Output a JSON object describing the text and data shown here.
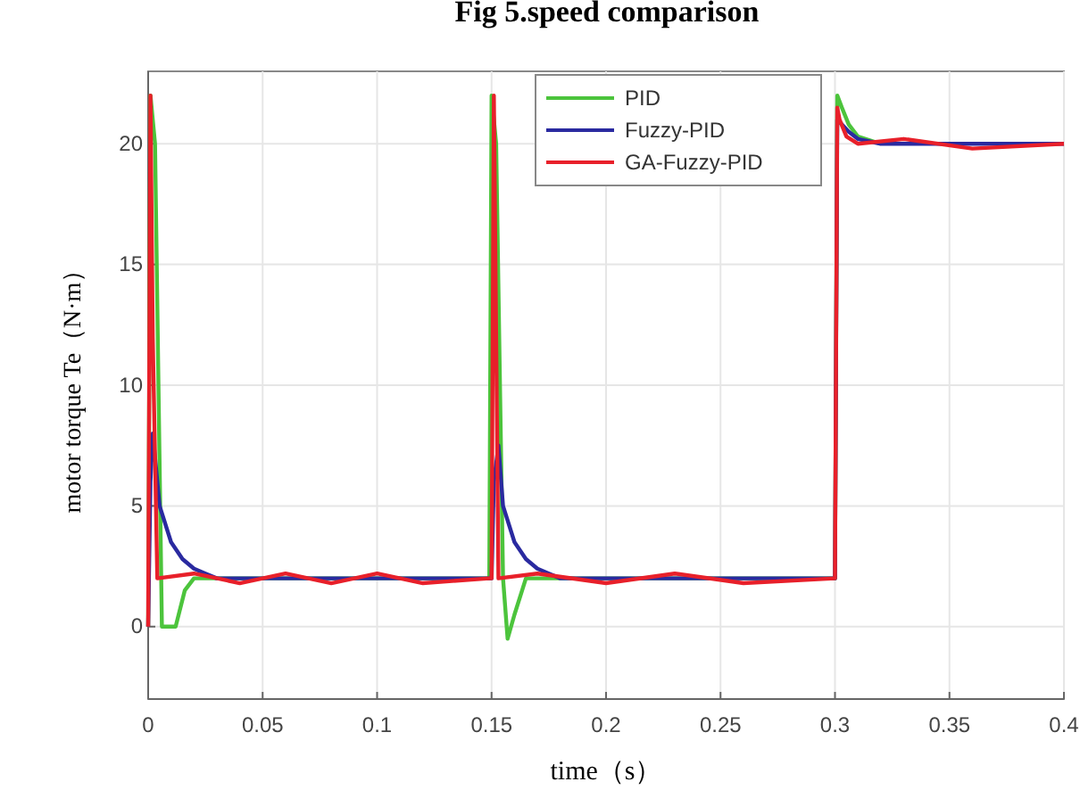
{
  "chart_data": {
    "type": "line",
    "title": "Fig 5.speed comparison",
    "xlabel": "time（s）",
    "ylabel": "motor torque Te（N·m）",
    "xlim": [
      0,
      0.4
    ],
    "ylim": [
      -3,
      23
    ],
    "xticks": [
      0,
      0.05,
      0.1,
      0.15,
      0.2,
      0.25,
      0.3,
      0.35,
      0.4
    ],
    "yticks": [
      0,
      5,
      10,
      15,
      20
    ],
    "grid": true,
    "legend": "top",
    "line_style": "solid",
    "series": [
      {
        "name": "PID",
        "color": "#4cc43c",
        "x": [
          0,
          0.001,
          0.003,
          0.006,
          0.008,
          0.012,
          0.016,
          0.02,
          0.05,
          0.1,
          0.149,
          0.15,
          0.152,
          0.155,
          0.157,
          0.16,
          0.165,
          0.2,
          0.25,
          0.3,
          0.301,
          0.303,
          0.306,
          0.31,
          0.32
        ],
        "values": [
          0,
          22,
          20,
          0,
          0,
          0,
          1.5,
          2,
          2,
          2,
          2,
          22,
          20,
          2,
          -0.5,
          0.5,
          2,
          2,
          2,
          2,
          22,
          21.5,
          20.8,
          20.3,
          20
        ]
      },
      {
        "name": "Fuzzy-PID",
        "color": "#2a2aa0",
        "x": [
          0,
          0.001,
          0.002,
          0.005,
          0.01,
          0.015,
          0.02,
          0.025,
          0.03,
          0.05,
          0.1,
          0.149,
          0.15,
          0.151,
          0.153,
          0.155,
          0.16,
          0.165,
          0.17,
          0.175,
          0.18,
          0.2,
          0.25,
          0.3,
          0.301,
          0.303,
          0.306,
          0.31,
          0.32,
          0.35,
          0.4
        ],
        "values": [
          0,
          6,
          8,
          5,
          3.5,
          2.8,
          2.4,
          2.2,
          2,
          2,
          2,
          2,
          2,
          6,
          7.5,
          5,
          3.5,
          2.8,
          2.4,
          2.2,
          2,
          2,
          2,
          2,
          21,
          20.8,
          20.5,
          20.2,
          20,
          20,
          20
        ]
      },
      {
        "name": "GA-Fuzzy-PID",
        "color": "#e8202a",
        "x": [
          0,
          0.001,
          0.002,
          0.004,
          0.02,
          0.04,
          0.06,
          0.08,
          0.1,
          0.12,
          0.149,
          0.15,
          0.151,
          0.153,
          0.17,
          0.2,
          0.23,
          0.26,
          0.3,
          0.301,
          0.302,
          0.305,
          0.31,
          0.33,
          0.36,
          0.4
        ],
        "values": [
          0,
          22,
          12,
          2,
          2.2,
          1.8,
          2.2,
          1.8,
          2.2,
          1.8,
          2,
          2,
          22,
          2,
          2.2,
          1.8,
          2.2,
          1.8,
          2,
          21.5,
          21,
          20.3,
          20,
          20.2,
          19.8,
          20
        ]
      }
    ]
  }
}
